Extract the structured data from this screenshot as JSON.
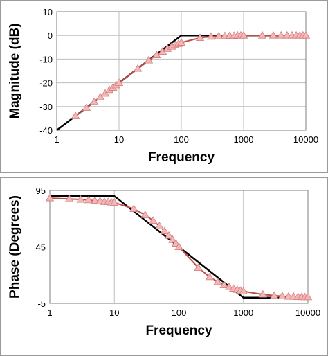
{
  "chart_data": [
    {
      "type": "line",
      "title": "",
      "xlabel": "Frequency",
      "ylabel": "Magnitude (dB)",
      "x_scale": "log",
      "xlim": [
        1,
        10000
      ],
      "ylim": [
        -40,
        10
      ],
      "x_ticks": [
        1,
        10,
        100,
        1000,
        10000
      ],
      "x_tick_labels": [
        "1",
        "10",
        "100",
        "1000",
        "10000"
      ],
      "y_ticks": [
        -40,
        -30,
        -20,
        -10,
        0,
        10
      ],
      "y_tick_labels": [
        "-40",
        "-30",
        "-20",
        "-10",
        "0",
        "10"
      ],
      "grid": true,
      "legend": "none",
      "series": [
        {
          "style": "line-black",
          "color": "#000000",
          "x": [
            1,
            100,
            10000
          ],
          "y": [
            -40,
            0,
            0
          ]
        },
        {
          "style": "line-triangle-markers",
          "color": "#c0504d",
          "marker_color": "#f2b7b7",
          "x": [
            2,
            3,
            4,
            5,
            6,
            7,
            8,
            9,
            10,
            20,
            30,
            40,
            50,
            60,
            70,
            80,
            90,
            100,
            200,
            300,
            400,
            500,
            600,
            700,
            800,
            900,
            1000,
            2000,
            3000,
            4000,
            5000,
            6000,
            7000,
            8000,
            9000,
            10000
          ],
          "y": [
            -34,
            -30.5,
            -28,
            -26,
            -24.5,
            -23,
            -22,
            -21,
            -20,
            -14,
            -10.5,
            -8.3,
            -6.8,
            -5.6,
            -4.7,
            -4,
            -3.5,
            -3,
            -1,
            -0.5,
            -0.3,
            -0.2,
            -0.1,
            -0.1,
            0,
            0,
            0,
            0,
            0,
            0,
            0,
            0,
            0,
            0,
            0,
            0
          ]
        }
      ]
    },
    {
      "type": "line",
      "title": "",
      "xlabel": "Frequency",
      "ylabel": "Phase (Degrees)",
      "x_scale": "log",
      "xlim": [
        1,
        10000
      ],
      "ylim": [
        -5,
        95
      ],
      "x_ticks": [
        1,
        10,
        100,
        1000,
        10000
      ],
      "x_tick_labels": [
        "1",
        "10",
        "100",
        "1000",
        "10000"
      ],
      "y_ticks": [
        -5,
        45,
        95
      ],
      "y_tick_labels": [
        "-5",
        "45",
        "95"
      ],
      "grid": true,
      "legend": "none",
      "series": [
        {
          "style": "line-black",
          "color": "#000000",
          "x": [
            1,
            10,
            1000,
            10000
          ],
          "y": [
            90,
            90,
            0,
            0
          ]
        },
        {
          "style": "line-triangle-markers",
          "color": "#c0504d",
          "marker_color": "#f2b7b7",
          "x": [
            1,
            2,
            3,
            4,
            5,
            6,
            7,
            8,
            9,
            10,
            20,
            30,
            40,
            50,
            60,
            70,
            80,
            90,
            100,
            200,
            300,
            400,
            500,
            600,
            700,
            800,
            900,
            1000,
            2000,
            3000,
            4000,
            5000,
            6000,
            7000,
            8000,
            9000,
            10000
          ],
          "y": [
            88.2,
            87.5,
            87,
            86.5,
            86,
            85.5,
            85,
            84.8,
            84.5,
            84.3,
            78.7,
            73.3,
            68.2,
            63.4,
            59,
            55,
            51.3,
            48,
            45,
            26.6,
            18.4,
            14,
            11.3,
            9.5,
            8.1,
            7.1,
            6.3,
            5.7,
            2.9,
            1.9,
            1.4,
            1.1,
            1,
            0.8,
            0.7,
            0.6,
            0.6
          ]
        }
      ]
    }
  ]
}
